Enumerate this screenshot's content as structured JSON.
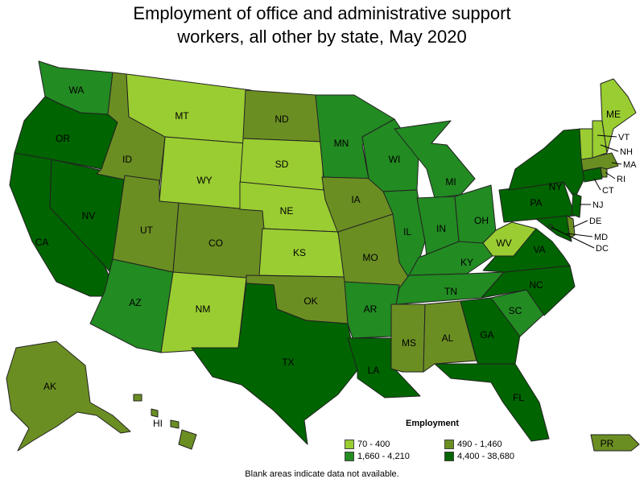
{
  "title_line1": "Employment of office and administrative support",
  "title_line2": "workers, all other by state, May 2020",
  "legend": {
    "title": "Employment",
    "items": [
      {
        "label": "70 - 400",
        "color": "#9acd32"
      },
      {
        "label": "490 - 1,460",
        "color": "#6b8e23"
      },
      {
        "label": "1,660 - 4,210",
        "color": "#228b22"
      },
      {
        "label": "4,400 - 38,680",
        "color": "#006400"
      }
    ]
  },
  "footnote": "Blank areas indicate data not available.",
  "states": {
    "WA": {
      "label": "WA",
      "tier": 2
    },
    "OR": {
      "label": "OR",
      "tier": 3
    },
    "CA": {
      "label": "CA",
      "tier": 3
    },
    "NV": {
      "label": "NV",
      "tier": 3
    },
    "ID": {
      "label": "ID",
      "tier": 1
    },
    "MT": {
      "label": "MT",
      "tier": 0
    },
    "WY": {
      "label": "WY",
      "tier": 0
    },
    "UT": {
      "label": "UT",
      "tier": 1
    },
    "AZ": {
      "label": "AZ",
      "tier": 2
    },
    "CO": {
      "label": "CO",
      "tier": 1
    },
    "NM": {
      "label": "NM",
      "tier": 0
    },
    "ND": {
      "label": "ND",
      "tier": 1
    },
    "SD": {
      "label": "SD",
      "tier": 0
    },
    "NE": {
      "label": "NE",
      "tier": 0
    },
    "KS": {
      "label": "KS",
      "tier": 0
    },
    "OK": {
      "label": "OK",
      "tier": 1
    },
    "TX": {
      "label": "TX",
      "tier": 3
    },
    "MN": {
      "label": "MN",
      "tier": 2
    },
    "IA": {
      "label": "IA",
      "tier": 1
    },
    "MO": {
      "label": "MO",
      "tier": 1
    },
    "AR": {
      "label": "AR",
      "tier": 2
    },
    "LA": {
      "label": "LA",
      "tier": 3
    },
    "WI": {
      "label": "WI",
      "tier": 2
    },
    "IL": {
      "label": "IL",
      "tier": 2
    },
    "MI": {
      "label": "MI",
      "tier": 2
    },
    "IN": {
      "label": "IN",
      "tier": 2
    },
    "OH": {
      "label": "OH",
      "tier": 2
    },
    "KY": {
      "label": "KY",
      "tier": 2
    },
    "TN": {
      "label": "TN",
      "tier": 2
    },
    "MS": {
      "label": "MS",
      "tier": 1
    },
    "AL": {
      "label": "AL",
      "tier": 1
    },
    "GA": {
      "label": "GA",
      "tier": 3
    },
    "FL": {
      "label": "FL",
      "tier": 3
    },
    "SC": {
      "label": "SC",
      "tier": 2
    },
    "NC": {
      "label": "NC",
      "tier": 3
    },
    "VA": {
      "label": "VA",
      "tier": 3
    },
    "WV": {
      "label": "WV",
      "tier": 0
    },
    "PA": {
      "label": "PA",
      "tier": 3
    },
    "NY": {
      "label": "NY",
      "tier": 3
    },
    "ME": {
      "label": "ME",
      "tier": 0
    },
    "VT": {
      "label": "VT",
      "tier": 0
    },
    "NH": {
      "label": "NH",
      "tier": 0
    },
    "MA": {
      "label": "MA",
      "tier": 1
    },
    "RI": {
      "label": "RI",
      "tier": 1
    },
    "CT": {
      "label": "CT",
      "tier": 3
    },
    "NJ": {
      "label": "NJ",
      "tier": 3
    },
    "DE": {
      "label": "DE",
      "tier": 1
    },
    "MD": {
      "label": "MD",
      "tier": 3
    },
    "DC": {
      "label": "DC",
      "tier": 3
    },
    "AK": {
      "label": "AK",
      "tier": 1
    },
    "HI": {
      "label": "HI",
      "tier": 1
    },
    "PR": {
      "label": "PR",
      "tier": 1
    }
  }
}
